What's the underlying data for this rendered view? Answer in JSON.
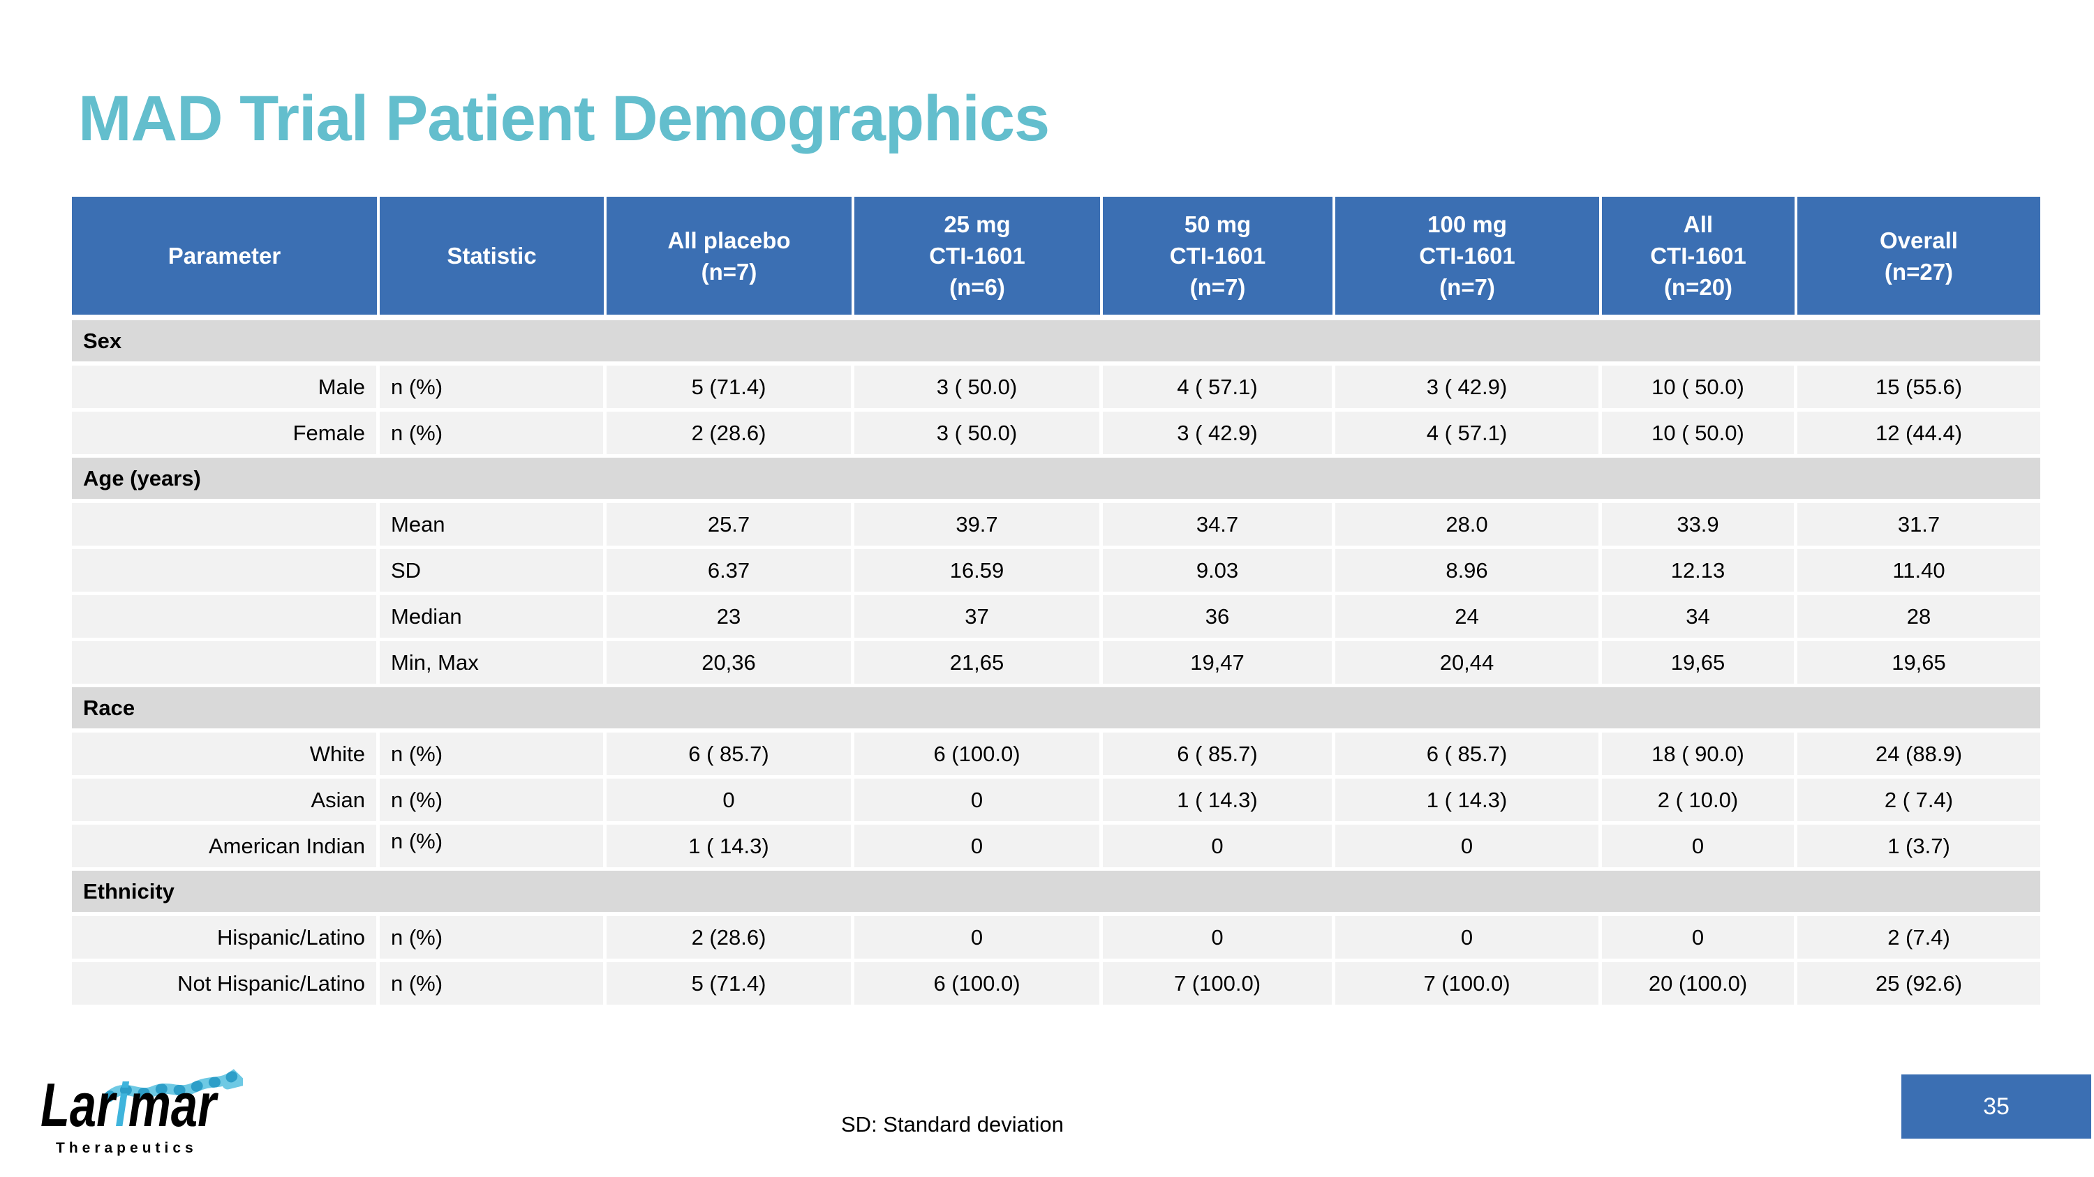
{
  "slide": {
    "title": "MAD Trial Patient Demographics",
    "footnote": "SD: Standard deviation",
    "page_number": "35"
  },
  "logo": {
    "brand_prefix": "Lar",
    "brand_i": "i",
    "brand_suffix": "mar",
    "tagline": "Therapeutics",
    "helix_icon": "protein-helix-graphic"
  },
  "colors": {
    "header_blue": "#3B6FB3",
    "title_teal": "#63BECD",
    "section_band_gray": "#D9D9D9",
    "row_gray": "#F2F2F2",
    "logo_blue": "#3FB4DC"
  },
  "table": {
    "columns": [
      "Parameter",
      "Statistic",
      "All placebo\n(n=7)",
      "25 mg\nCTI-1601\n(n=6)",
      "50 mg\nCTI-1601\n(n=7)",
      "100 mg\nCTI-1601\n(n=7)",
      "All\nCTI-1601\n(n=20)",
      "Overall\n(n=27)"
    ],
    "sections": [
      {
        "label": "Sex",
        "rows": [
          {
            "parameter": "Male",
            "statistic": "n (%)",
            "values": [
              "5 (71.4)",
              "3 ( 50.0)",
              "4 ( 57.1)",
              "3 ( 42.9)",
              "10 ( 50.0)",
              "15 (55.6)"
            ]
          },
          {
            "parameter": "Female",
            "statistic": "n (%)",
            "values": [
              "2 (28.6)",
              "3 ( 50.0)",
              "3 ( 42.9)",
              "4 ( 57.1)",
              "10 ( 50.0)",
              "12 (44.4)"
            ]
          }
        ]
      },
      {
        "label": "Age (years)",
        "rows": [
          {
            "parameter": "",
            "statistic": "Mean",
            "values": [
              "25.7",
              "39.7",
              "34.7",
              "28.0",
              "33.9",
              "31.7"
            ]
          },
          {
            "parameter": "",
            "statistic": "SD",
            "values": [
              "6.37",
              "16.59",
              "9.03",
              "8.96",
              "12.13",
              "11.40"
            ]
          },
          {
            "parameter": "",
            "statistic": "Median",
            "values": [
              "23",
              "37",
              "36",
              "24",
              "34",
              "28"
            ]
          },
          {
            "parameter": "",
            "statistic": "Min, Max",
            "values": [
              "20,36",
              "21,65",
              "19,47",
              "20,44",
              "19,65",
              "19,65"
            ]
          }
        ]
      },
      {
        "label": "Race",
        "rows": [
          {
            "parameter": "White",
            "statistic": "n (%)",
            "values": [
              "6 ( 85.7)",
              "6 (100.0)",
              "6 ( 85.7)",
              "6 ( 85.7)",
              "18 ( 90.0)",
              "24 (88.9)"
            ]
          },
          {
            "parameter": "Asian",
            "statistic": "n (%)",
            "values": [
              "0",
              "0",
              "1 ( 14.3)",
              "1 ( 14.3)",
              "2 ( 10.0)",
              "2 ( 7.4)"
            ]
          },
          {
            "parameter": "American Indian",
            "statistic": "n (%)",
            "stat_position": "top",
            "values": [
              "1 ( 14.3)",
              "0",
              "0",
              "0",
              "0",
              "1 (3.7)"
            ]
          }
        ]
      },
      {
        "label": "Ethnicity",
        "rows": [
          {
            "parameter": "Hispanic/Latino",
            "statistic": "n (%)",
            "values": [
              "2 (28.6)",
              "0",
              "0",
              "0",
              "0",
              "2 (7.4)"
            ]
          },
          {
            "parameter": "Not Hispanic/Latino",
            "statistic": "n (%)",
            "values": [
              "5 (71.4)",
              "6 (100.0)",
              "7 (100.0)",
              "7 (100.0)",
              "20 (100.0)",
              "25 (92.6)"
            ]
          }
        ]
      }
    ]
  }
}
